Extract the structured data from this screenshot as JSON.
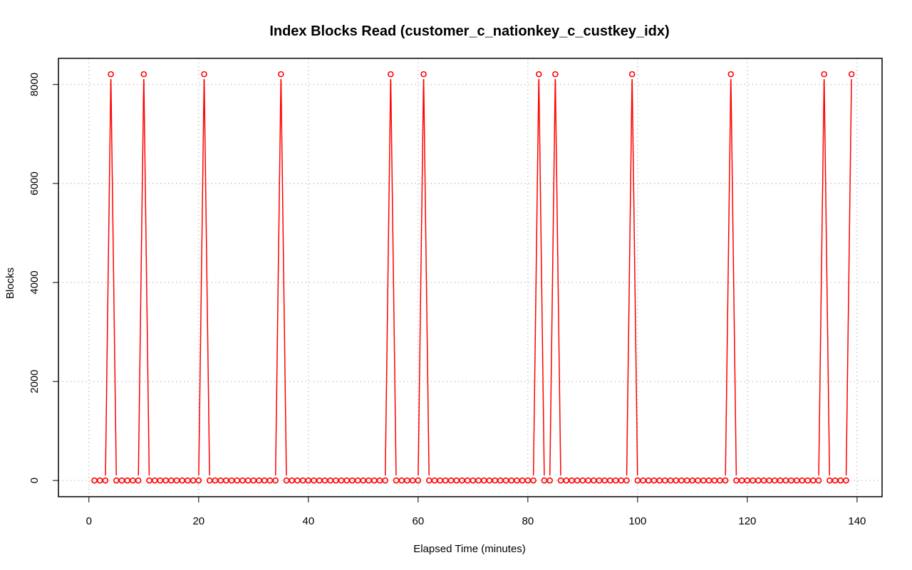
{
  "chart_data": {
    "type": "line",
    "title": "Index Blocks Read (customer_c_nationkey_c_custkey_idx)",
    "xlabel": "Elapsed Time (minutes)",
    "ylabel": "Blocks",
    "xlim": [
      -5.56,
      144.56
    ],
    "ylim": [
      -328,
      8528
    ],
    "xticks": [
      0,
      20,
      40,
      60,
      80,
      100,
      120,
      140
    ],
    "yticks": [
      0,
      2000,
      4000,
      6000,
      8000
    ],
    "grid": true,
    "line_color": "#ff0000",
    "marker": "open-circle",
    "series": [
      {
        "x_start": 1,
        "x_end": 139,
        "baseline": 0,
        "peak_value": 8208,
        "peak_x": [
          4,
          10,
          21,
          35,
          55,
          61,
          82,
          85,
          99,
          117,
          134,
          139
        ]
      }
    ]
  }
}
